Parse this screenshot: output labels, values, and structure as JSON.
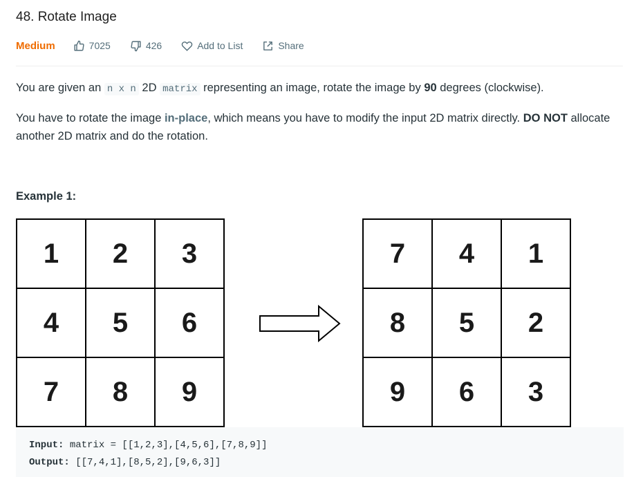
{
  "problem": {
    "title": "48. Rotate Image",
    "difficulty": "Medium",
    "likes": "7025",
    "dislikes": "426",
    "add_to_list": "Add to List",
    "share": "Share"
  },
  "description": {
    "p1": {
      "a": "You are given an ",
      "code1": "n x n",
      "b": " 2D ",
      "code2": "matrix",
      "c": " representing an image, rotate the image by ",
      "bold": "90",
      "d": " degrees (clockwise)."
    },
    "p2": {
      "a": "You have to rotate the image ",
      "highlight": "in-place",
      "b": ", which means you have to modify the input 2D matrix directly. ",
      "bold": "DO NOT",
      "c": " allocate another 2D matrix and do the rotation."
    }
  },
  "example": {
    "title": "Example 1:",
    "input_grid": [
      "1",
      "2",
      "3",
      "4",
      "5",
      "6",
      "7",
      "8",
      "9"
    ],
    "output_grid": [
      "7",
      "4",
      "1",
      "8",
      "5",
      "2",
      "9",
      "6",
      "3"
    ],
    "input_label": "Input:",
    "input_value": " matrix = [[1,2,3],[4,5,6],[7,8,9]]",
    "output_label": "Output:",
    "output_value": " [[7,4,1],[8,5,2],[9,6,3]]"
  },
  "colors": {
    "difficulty": "#ef6c00",
    "meta": "#546e7a",
    "code_bg": "#f7f9fa"
  },
  "icons": [
    "thumbs-up-icon",
    "thumbs-down-icon",
    "heart-icon",
    "share-icon",
    "right-arrow-icon"
  ]
}
